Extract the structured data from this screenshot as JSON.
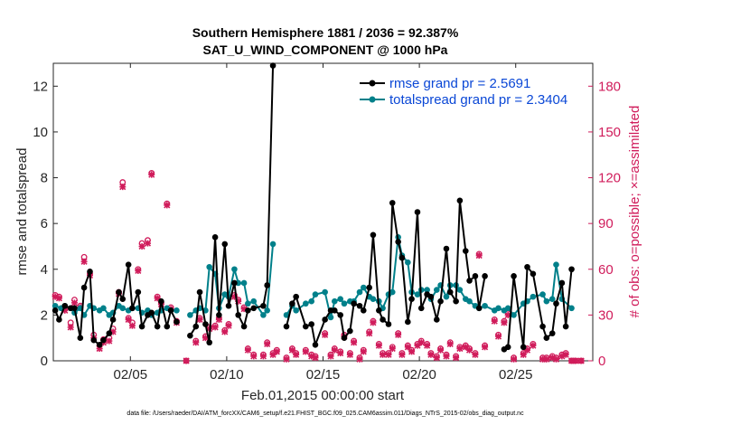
{
  "chart_data": {
    "type": "line",
    "title_line1": "Southern Hemisphere 1881 / 2036 = 92.387%",
    "title_line2": "SAT_U_WIND_COMPONENT @ 1000 hPa",
    "xlabel": "Feb.01,2015 00:00:00 start",
    "ylabel": "rmse and totalspread",
    "ylabel_right": "# of obs: o=possible; ×=assimilated",
    "footer": "data file: /Users/raeder/DAI/ATM_forcXX/CAM6_setup/f.e21.FHIST_BGC.f09_025.CAM6assim.011/Diags_NTrS_2015-02/obs_diag_output.nc",
    "xlim": [
      1,
      29
    ],
    "ylim": [
      0,
      13
    ],
    "ylim_right": [
      0,
      195
    ],
    "x_ticks": [
      5,
      10,
      15,
      20,
      25
    ],
    "x_tick_labels": [
      "02/05",
      "02/10",
      "02/15",
      "02/20",
      "02/25"
    ],
    "y_ticks": [
      0,
      2,
      4,
      6,
      8,
      10,
      12
    ],
    "y_tick_labels": [
      "0",
      "2",
      "4",
      "6",
      "8",
      "10",
      "12"
    ],
    "y_right_ticks": [
      0,
      30,
      60,
      90,
      120,
      150,
      180
    ],
    "y_right_tick_labels": [
      "0",
      "30",
      "60",
      "90",
      "120",
      "150",
      "180"
    ],
    "colors": {
      "rmse": "#000000",
      "spread": "#00808a",
      "obs": "#d01c5b",
      "legend_text": "#0a47d6"
    },
    "series": [
      {
        "name": "rmse grand pr = 2.5691",
        "key": "rmse",
        "x": [
          1.1,
          1.3,
          1.6,
          1.9,
          2.1,
          2.4,
          2.6,
          2.9,
          3.1,
          3.4,
          3.6,
          3.9,
          4.1,
          4.4,
          4.6,
          4.9,
          5.1,
          5.4,
          5.6,
          5.9,
          6.1,
          6.4,
          6.6,
          6.9,
          7.1,
          7.4,
          8.1,
          8.4,
          8.6,
          8.9,
          9.1,
          9.4,
          9.6,
          9.9,
          10.1,
          10.4,
          10.6,
          10.9,
          11.1,
          11.4,
          11.9,
          12.1,
          12.4,
          13.1,
          13.4,
          13.6,
          14.1,
          14.4,
          14.6,
          15.1,
          15.4,
          15.6,
          15.9,
          16.1,
          16.4,
          16.6,
          16.9,
          17.1,
          17.4,
          17.6,
          17.9,
          18.1,
          18.4,
          18.6,
          18.9,
          19.1,
          19.4,
          19.6,
          19.9,
          20.1,
          20.4,
          20.6,
          20.9,
          21.1,
          21.4,
          21.6,
          21.9,
          22.1,
          22.4,
          22.6,
          22.9,
          23.1,
          23.4,
          24.4,
          24.6,
          24.9,
          25.4,
          25.6,
          25.9,
          26.4,
          26.6,
          26.9,
          27.1,
          27.4,
          27.6,
          27.9
        ],
        "values": [
          2.2,
          1.8,
          2.4,
          2.3,
          2.3,
          1.0,
          3.2,
          3.9,
          0.9,
          0.7,
          0.9,
          1.2,
          1.8,
          3.0,
          2.7,
          4.2,
          2.3,
          3.0,
          1.5,
          2.0,
          2.1,
          1.5,
          2.6,
          1.5,
          2.2,
          1.7,
          1.1,
          1.5,
          3.0,
          1.6,
          0.8,
          5.4,
          2.0,
          5.1,
          2.4,
          3.4,
          2.0,
          1.5,
          2.2,
          2.3,
          2.4,
          3.3,
          12.9,
          1.5,
          2.5,
          2.8,
          1.5,
          1.6,
          0.7,
          1.8,
          2.2,
          2.2,
          2.0,
          1.0,
          1.3,
          2.5,
          2.4,
          2.2,
          3.2,
          5.5,
          2.2,
          1.8,
          1.6,
          6.9,
          5.2,
          4.5,
          1.7,
          2.7,
          6.5,
          2.3,
          2.9,
          2.8,
          1.8,
          2.6,
          4.9,
          3.0,
          2.6,
          7.0,
          4.8,
          3.5,
          3.7,
          2.3,
          3.7,
          0.5,
          0.6,
          3.7,
          0.6,
          4.1,
          3.8,
          1.5,
          1.0,
          1.2,
          2.5,
          3.4,
          1.5,
          4.0
        ],
        "values_clean": true
      },
      {
        "name": "totalspread grand pr = 2.3404",
        "key": "spread",
        "x": [
          1.1,
          1.4,
          1.6,
          1.9,
          2.1,
          2.4,
          2.6,
          2.9,
          3.1,
          3.4,
          3.6,
          3.9,
          4.1,
          4.4,
          4.6,
          4.9,
          5.1,
          5.4,
          5.6,
          5.9,
          6.1,
          6.4,
          6.6,
          6.9,
          7.1,
          7.4,
          8.1,
          8.4,
          8.6,
          8.9,
          9.1,
          9.4,
          9.6,
          9.9,
          10.1,
          10.4,
          10.6,
          10.9,
          11.1,
          11.4,
          11.9,
          12.1,
          12.4,
          13.1,
          13.4,
          13.6,
          14.1,
          14.4,
          14.6,
          15.1,
          15.4,
          15.6,
          15.9,
          16.1,
          16.4,
          16.6,
          16.9,
          17.1,
          17.4,
          17.6,
          17.9,
          18.1,
          18.4,
          18.6,
          18.9,
          19.1,
          19.4,
          19.6,
          19.9,
          20.1,
          20.4,
          20.6,
          20.9,
          21.1,
          21.4,
          21.6,
          21.9,
          22.1,
          22.4,
          22.6,
          22.9,
          23.1,
          23.4,
          23.9,
          24.1,
          24.4,
          24.6,
          24.9,
          25.4,
          25.6,
          25.9,
          26.4,
          26.6,
          26.9,
          27.1,
          27.4,
          27.9
        ],
        "values": [
          2.4,
          2.3,
          2.4,
          2.3,
          2.1,
          2.3,
          2.0,
          2.4,
          2.3,
          2.2,
          2.3,
          2.0,
          2.1,
          2.4,
          2.3,
          2.2,
          2.3,
          2.3,
          2.1,
          2.2,
          2.0,
          2.1,
          2.2,
          2.3,
          2.2,
          2.2,
          2.0,
          2.2,
          2.3,
          2.2,
          4.1,
          3.8,
          2.3,
          2.9,
          2.8,
          4.0,
          3.4,
          3.4,
          2.5,
          2.6,
          2.0,
          2.2,
          5.1,
          2.0,
          2.4,
          2.2,
          2.5,
          2.6,
          2.9,
          3.0,
          1.9,
          2.6,
          2.7,
          2.5,
          2.6,
          2.6,
          3.0,
          3.2,
          2.8,
          2.7,
          2.6,
          2.3,
          2.9,
          3.0,
          5.4,
          4.6,
          4.3,
          3.0,
          2.9,
          3.1,
          3.1,
          2.7,
          3.1,
          3.3,
          2.8,
          3.3,
          3.3,
          3.1,
          2.7,
          2.6,
          2.4,
          2.3,
          2.4,
          2.2,
          2.3,
          2.2,
          2.3,
          2.0,
          2.5,
          2.6,
          2.8,
          2.9,
          2.6,
          2.7,
          4.2,
          2.7,
          2.3
        ]
      }
    ],
    "obs_possible": {
      "x": [
        1.1,
        1.3,
        1.6,
        1.9,
        2.1,
        2.4,
        2.6,
        2.9,
        3.1,
        3.4,
        3.6,
        3.9,
        4.1,
        4.4,
        4.6,
        4.9,
        5.1,
        5.4,
        5.6,
        5.9,
        6.1,
        6.4,
        6.6,
        6.9,
        7.1,
        7.4,
        7.9,
        8.4,
        8.6,
        8.9,
        9.1,
        9.4,
        9.6,
        9.9,
        10.1,
        10.4,
        10.6,
        10.9,
        11.1,
        11.4,
        11.9,
        12.1,
        12.4,
        12.6,
        13.1,
        13.4,
        13.6,
        14.1,
        14.4,
        14.6,
        15.1,
        15.4,
        15.6,
        15.9,
        16.1,
        16.4,
        16.6,
        16.9,
        17.1,
        17.4,
        17.6,
        17.9,
        18.1,
        18.4,
        18.6,
        18.9,
        19.1,
        19.4,
        19.6,
        19.9,
        20.1,
        20.4,
        20.6,
        20.9,
        21.1,
        21.4,
        21.6,
        21.9,
        22.1,
        22.4,
        22.6,
        22.9,
        23.1,
        23.4,
        23.9,
        24.1,
        24.4,
        24.6,
        24.9,
        25.4,
        25.6,
        25.9,
        26.4,
        26.6,
        26.9,
        27.1,
        27.4,
        27.6,
        27.9,
        28.1,
        28.4
      ],
      "values": [
        43,
        42,
        34,
        25,
        40,
        36,
        68,
        57,
        17,
        10,
        14,
        15,
        21,
        45,
        117,
        28,
        25,
        60,
        77,
        79,
        123,
        42,
        38,
        103,
        35,
        26,
        0,
        13,
        28,
        16,
        22,
        23,
        28,
        20,
        24,
        43,
        40,
        35,
        8,
        4,
        4,
        12,
        5,
        7,
        2,
        8,
        5,
        7,
        4,
        3,
        18,
        4,
        8,
        6,
        17,
        5,
        13,
        2,
        7,
        19,
        26,
        11,
        5,
        5,
        9,
        18,
        5,
        10,
        7,
        11,
        13,
        11,
        5,
        3,
        8,
        4,
        12,
        3,
        9,
        10,
        8,
        5,
        70,
        10,
        27,
        17,
        26,
        31,
        2,
        5,
        8,
        11,
        2,
        2,
        3,
        2,
        4,
        5,
        0,
        0,
        0
      ]
    },
    "obs_assimilated": {
      "x": [
        1.1,
        1.3,
        1.6,
        1.9,
        2.1,
        2.4,
        2.6,
        2.9,
        3.1,
        3.4,
        3.6,
        3.9,
        4.1,
        4.4,
        4.6,
        4.9,
        5.1,
        5.4,
        5.6,
        5.9,
        6.1,
        6.4,
        6.6,
        6.9,
        7.1,
        7.4,
        7.9,
        8.4,
        8.6,
        8.9,
        9.1,
        9.4,
        9.6,
        9.9,
        10.1,
        10.4,
        10.6,
        10.9,
        11.1,
        11.4,
        11.9,
        12.1,
        12.4,
        12.6,
        13.1,
        13.4,
        13.6,
        14.1,
        14.4,
        14.6,
        15.1,
        15.4,
        15.6,
        15.9,
        16.1,
        16.4,
        16.6,
        16.9,
        17.1,
        17.4,
        17.6,
        17.9,
        18.1,
        18.4,
        18.6,
        18.9,
        19.1,
        19.4,
        19.6,
        19.9,
        20.1,
        20.4,
        20.6,
        20.9,
        21.1,
        21.4,
        21.6,
        21.9,
        22.1,
        22.4,
        22.6,
        22.9,
        23.1,
        23.4,
        23.9,
        24.1,
        24.4,
        24.6,
        24.9,
        25.4,
        25.6,
        25.9,
        26.4,
        26.6,
        26.9,
        27.1,
        27.4,
        27.6,
        27.9,
        28.1,
        28.4
      ],
      "values": [
        42,
        41,
        33,
        22,
        38,
        35,
        65,
        56,
        15,
        8,
        12,
        13,
        19,
        44,
        114,
        27,
        23,
        59,
        75,
        77,
        122,
        41,
        37,
        102,
        34,
        25,
        0,
        12,
        27,
        15,
        21,
        22,
        27,
        19,
        23,
        42,
        39,
        34,
        7,
        3,
        3,
        11,
        4,
        6,
        1,
        7,
        4,
        6,
        3,
        2,
        17,
        3,
        7,
        5,
        16,
        4,
        12,
        1,
        6,
        18,
        25,
        10,
        4,
        4,
        8,
        17,
        4,
        9,
        6,
        10,
        12,
        10,
        4,
        2,
        7,
        3,
        11,
        2,
        8,
        9,
        7,
        4,
        69,
        9,
        26,
        16,
        25,
        30,
        1,
        4,
        7,
        10,
        1,
        1,
        2,
        1,
        3,
        4,
        0,
        0,
        0
      ]
    }
  }
}
